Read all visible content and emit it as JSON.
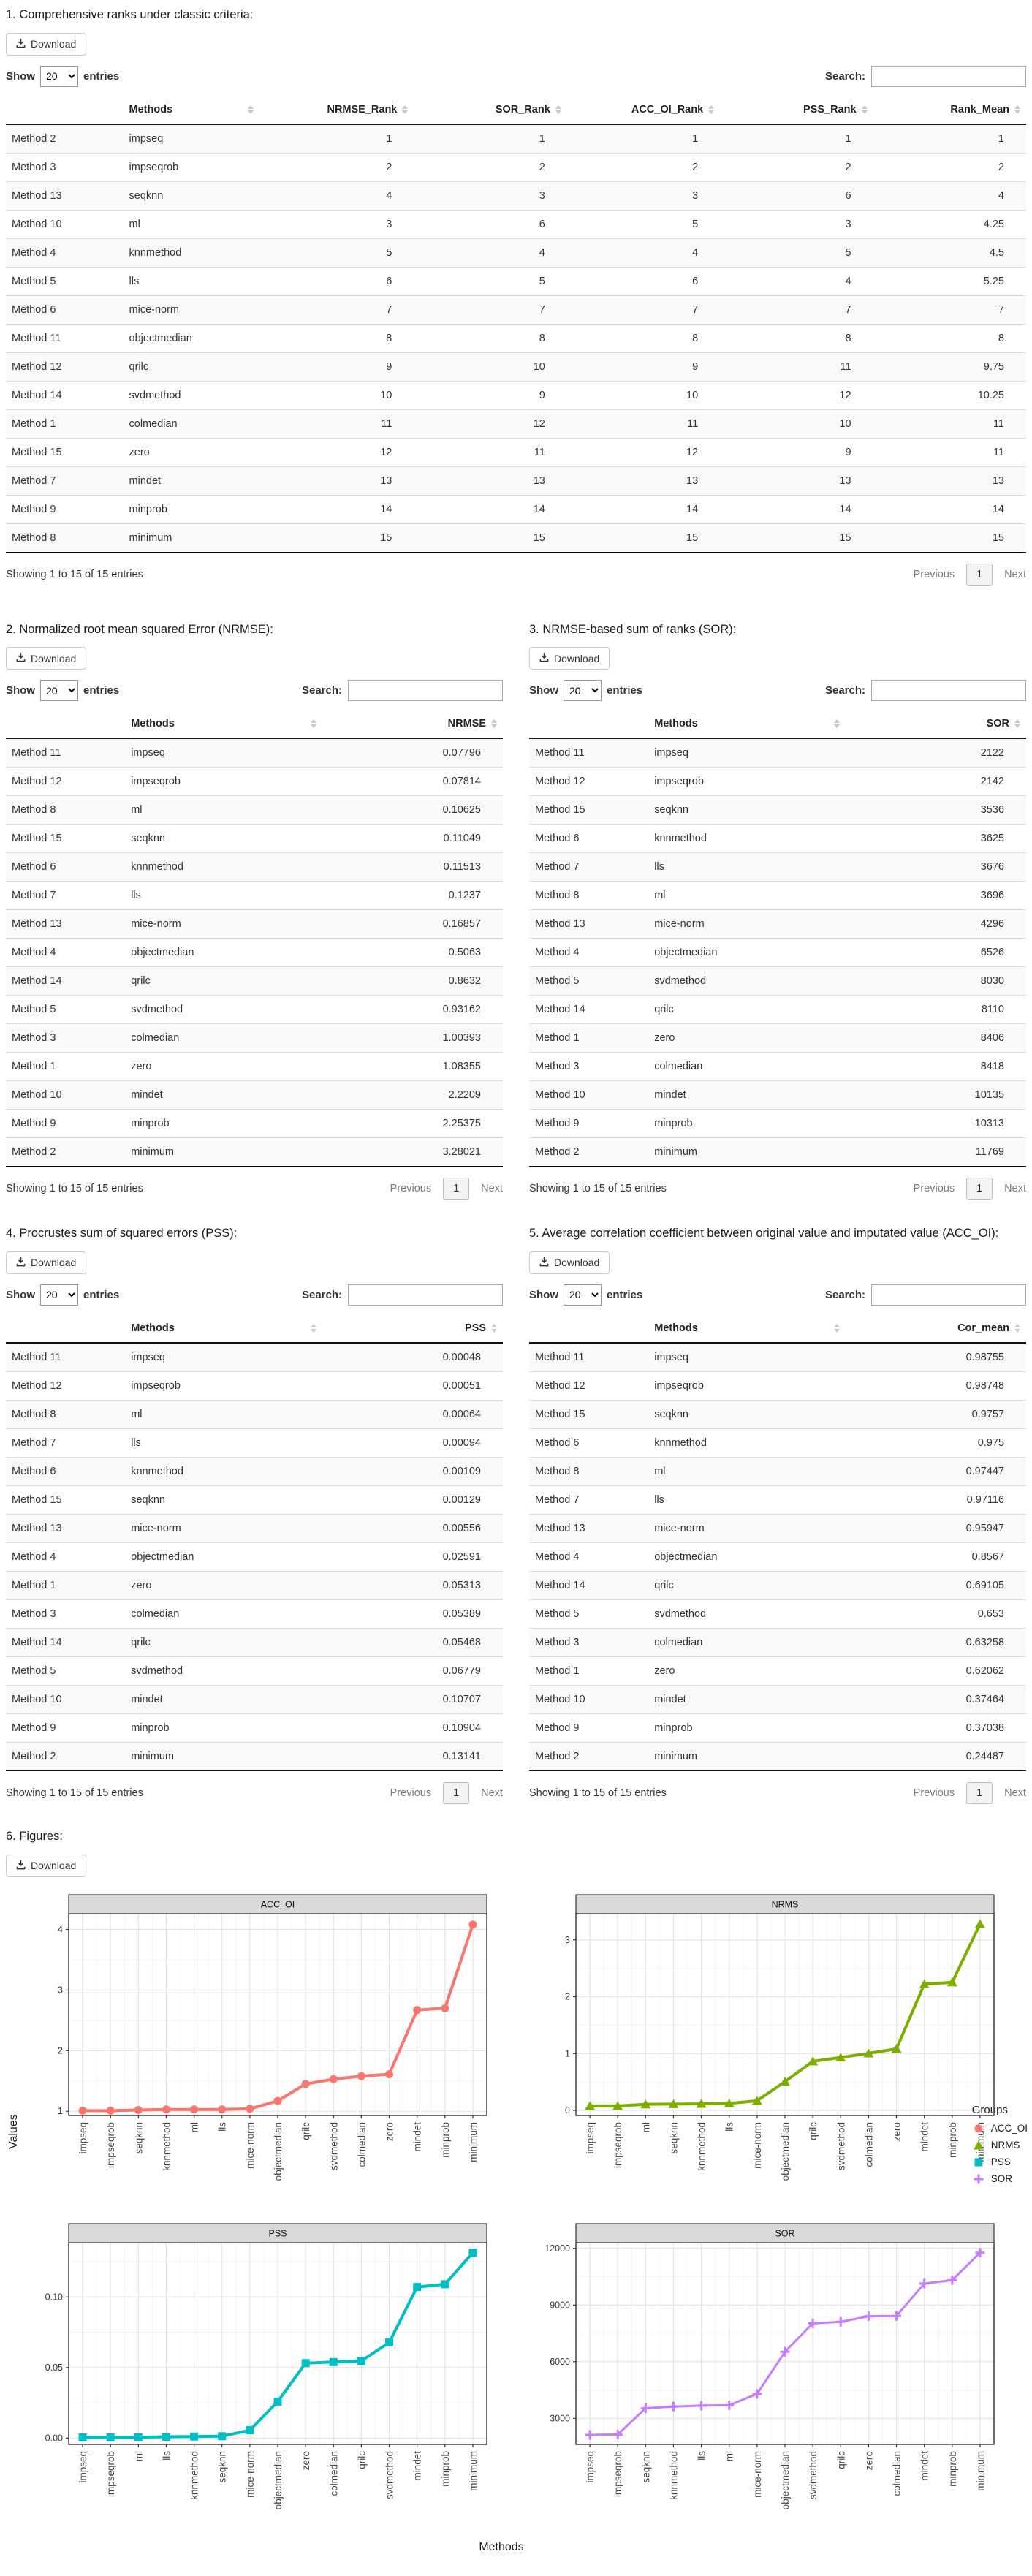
{
  "sections": {
    "s1": {
      "title": "1. Comprehensive ranks under classic criteria:"
    },
    "s2": {
      "title": "2. Normalized root mean squared Error (NRMSE):"
    },
    "s3": {
      "title": "3. NRMSE-based sum of ranks (SOR):"
    },
    "s4": {
      "title": "4. Procrustes sum of squared errors (PSS):"
    },
    "s5": {
      "title": "5. Average correlation coefficient between original value and imputated value (ACC_OI):"
    },
    "s6": {
      "title": "6. Figures:"
    }
  },
  "controls": {
    "download_label": "Download",
    "show_label": "Show",
    "page_size": "20",
    "entries_label": "entries",
    "search_label": "Search:",
    "showing_text": "Showing 1 to 15 of 15 entries",
    "previous_label": "Previous",
    "page_number": "1",
    "next_label": "Next"
  },
  "table1": {
    "columns": [
      "",
      "Methods",
      "NRMSE_Rank",
      "SOR_Rank",
      "ACC_OI_Rank",
      "PSS_Rank",
      "Rank_Mean"
    ],
    "rows": [
      [
        "Method 2",
        "impseq",
        "1",
        "1",
        "1",
        "1",
        "1"
      ],
      [
        "Method 3",
        "impseqrob",
        "2",
        "2",
        "2",
        "2",
        "2"
      ],
      [
        "Method 13",
        "seqknn",
        "4",
        "3",
        "3",
        "6",
        "4"
      ],
      [
        "Method 10",
        "ml",
        "3",
        "6",
        "5",
        "3",
        "4.25"
      ],
      [
        "Method 4",
        "knnmethod",
        "5",
        "4",
        "4",
        "5",
        "4.5"
      ],
      [
        "Method 5",
        "lls",
        "6",
        "5",
        "6",
        "4",
        "5.25"
      ],
      [
        "Method 6",
        "mice-norm",
        "7",
        "7",
        "7",
        "7",
        "7"
      ],
      [
        "Method 11",
        "objectmedian",
        "8",
        "8",
        "8",
        "8",
        "8"
      ],
      [
        "Method 12",
        "qrilc",
        "9",
        "10",
        "9",
        "11",
        "9.75"
      ],
      [
        "Method 14",
        "svdmethod",
        "10",
        "9",
        "10",
        "12",
        "10.25"
      ],
      [
        "Method 1",
        "colmedian",
        "11",
        "12",
        "11",
        "10",
        "11"
      ],
      [
        "Method 15",
        "zero",
        "12",
        "11",
        "12",
        "9",
        "11"
      ],
      [
        "Method 7",
        "mindet",
        "13",
        "13",
        "13",
        "13",
        "13"
      ],
      [
        "Method 9",
        "minprob",
        "14",
        "14",
        "14",
        "14",
        "14"
      ],
      [
        "Method 8",
        "minimum",
        "15",
        "15",
        "15",
        "15",
        "15"
      ]
    ]
  },
  "table2": {
    "columns": [
      "",
      "Methods",
      "NRMSE"
    ],
    "rows": [
      [
        "Method 11",
        "impseq",
        "0.07796"
      ],
      [
        "Method 12",
        "impseqrob",
        "0.07814"
      ],
      [
        "Method 8",
        "ml",
        "0.10625"
      ],
      [
        "Method 15",
        "seqknn",
        "0.11049"
      ],
      [
        "Method 6",
        "knnmethod",
        "0.11513"
      ],
      [
        "Method 7",
        "lls",
        "0.1237"
      ],
      [
        "Method 13",
        "mice-norm",
        "0.16857"
      ],
      [
        "Method 4",
        "objectmedian",
        "0.5063"
      ],
      [
        "Method 14",
        "qrilc",
        "0.8632"
      ],
      [
        "Method 5",
        "svdmethod",
        "0.93162"
      ],
      [
        "Method 3",
        "colmedian",
        "1.00393"
      ],
      [
        "Method 1",
        "zero",
        "1.08355"
      ],
      [
        "Method 10",
        "mindet",
        "2.2209"
      ],
      [
        "Method 9",
        "minprob",
        "2.25375"
      ],
      [
        "Method 2",
        "minimum",
        "3.28021"
      ]
    ]
  },
  "table3": {
    "columns": [
      "",
      "Methods",
      "SOR"
    ],
    "rows": [
      [
        "Method 11",
        "impseq",
        "2122"
      ],
      [
        "Method 12",
        "impseqrob",
        "2142"
      ],
      [
        "Method 15",
        "seqknn",
        "3536"
      ],
      [
        "Method 6",
        "knnmethod",
        "3625"
      ],
      [
        "Method 7",
        "lls",
        "3676"
      ],
      [
        "Method 8",
        "ml",
        "3696"
      ],
      [
        "Method 13",
        "mice-norm",
        "4296"
      ],
      [
        "Method 4",
        "objectmedian",
        "6526"
      ],
      [
        "Method 5",
        "svdmethod",
        "8030"
      ],
      [
        "Method 14",
        "qrilc",
        "8110"
      ],
      [
        "Method 1",
        "zero",
        "8406"
      ],
      [
        "Method 3",
        "colmedian",
        "8418"
      ],
      [
        "Method 10",
        "mindet",
        "10135"
      ],
      [
        "Method 9",
        "minprob",
        "10313"
      ],
      [
        "Method 2",
        "minimum",
        "11769"
      ]
    ]
  },
  "table4": {
    "columns": [
      "",
      "Methods",
      "PSS"
    ],
    "rows": [
      [
        "Method 11",
        "impseq",
        "0.00048"
      ],
      [
        "Method 12",
        "impseqrob",
        "0.00051"
      ],
      [
        "Method 8",
        "ml",
        "0.00064"
      ],
      [
        "Method 7",
        "lls",
        "0.00094"
      ],
      [
        "Method 6",
        "knnmethod",
        "0.00109"
      ],
      [
        "Method 15",
        "seqknn",
        "0.00129"
      ],
      [
        "Method 13",
        "mice-norm",
        "0.00556"
      ],
      [
        "Method 4",
        "objectmedian",
        "0.02591"
      ],
      [
        "Method 1",
        "zero",
        "0.05313"
      ],
      [
        "Method 3",
        "colmedian",
        "0.05389"
      ],
      [
        "Method 14",
        "qrilc",
        "0.05468"
      ],
      [
        "Method 5",
        "svdmethod",
        "0.06779"
      ],
      [
        "Method 10",
        "mindet",
        "0.10707"
      ],
      [
        "Method 9",
        "minprob",
        "0.10904"
      ],
      [
        "Method 2",
        "minimum",
        "0.13141"
      ]
    ]
  },
  "table5": {
    "columns": [
      "",
      "Methods",
      "Cor_mean"
    ],
    "rows": [
      [
        "Method 11",
        "impseq",
        "0.98755"
      ],
      [
        "Method 12",
        "impseqrob",
        "0.98748"
      ],
      [
        "Method 15",
        "seqknn",
        "0.9757"
      ],
      [
        "Method 6",
        "knnmethod",
        "0.975"
      ],
      [
        "Method 8",
        "ml",
        "0.97447"
      ],
      [
        "Method 7",
        "lls",
        "0.97116"
      ],
      [
        "Method 13",
        "mice-norm",
        "0.95947"
      ],
      [
        "Method 4",
        "objectmedian",
        "0.8567"
      ],
      [
        "Method 14",
        "qrilc",
        "0.69105"
      ],
      [
        "Method 5",
        "svdmethod",
        "0.653"
      ],
      [
        "Method 3",
        "colmedian",
        "0.63258"
      ],
      [
        "Method 1",
        "zero",
        "0.62062"
      ],
      [
        "Method 10",
        "mindet",
        "0.37464"
      ],
      [
        "Method 9",
        "minprob",
        "0.37038"
      ],
      [
        "Method 2",
        "minimum",
        "0.24487"
      ]
    ]
  },
  "figures": {
    "ylabel": "Values",
    "xlabel": "Methods",
    "legend": {
      "title": "Groups",
      "items": [
        {
          "label": "ACC_OI",
          "color": "#F8766D",
          "marker": "circle"
        },
        {
          "label": "NRMS",
          "color": "#7CAE00",
          "marker": "triangle"
        },
        {
          "label": "PSS",
          "color": "#00BFC4",
          "marker": "square"
        },
        {
          "label": "SOR",
          "color": "#C77CFF",
          "marker": "plus"
        }
      ]
    }
  },
  "chart_data": [
    {
      "type": "line",
      "title": "ACC_OI",
      "color": "#F8766D",
      "marker": "circle",
      "categories": [
        "impseq",
        "impseqrob",
        "seqknn",
        "knnmethod",
        "ml",
        "lls",
        "mice-norm",
        "objectmedian",
        "qrilc",
        "svdmethod",
        "colmedian",
        "zero",
        "mindet",
        "minprob",
        "minimum"
      ],
      "values": [
        1.01,
        1.01,
        1.02,
        1.03,
        1.03,
        1.03,
        1.04,
        1.17,
        1.45,
        1.53,
        1.58,
        1.61,
        2.67,
        2.7,
        4.08
      ],
      "xlabel": "Methods",
      "ylabel": "Values",
      "ylim": [
        0.93,
        4.26
      ],
      "yticks": [
        1,
        2,
        3,
        4
      ],
      "ytick_labels": [
        "1",
        "2",
        "3",
        "4"
      ],
      "grid": true,
      "legend_position": "right"
    },
    {
      "type": "line",
      "title": "NRMS",
      "color": "#7CAE00",
      "marker": "triangle",
      "categories": [
        "impseq",
        "impseqrob",
        "ml",
        "seqknn",
        "knnmethod",
        "lls",
        "mice-norm",
        "objectmedian",
        "qrilc",
        "svdmethod",
        "colmedian",
        "zero",
        "mindet",
        "minprob",
        "minimum"
      ],
      "values": [
        0.07796,
        0.07814,
        0.10625,
        0.11049,
        0.11513,
        0.1237,
        0.16857,
        0.5063,
        0.8632,
        0.93162,
        1.00393,
        1.08355,
        2.2209,
        2.25375,
        3.28021
      ],
      "xlabel": "Methods",
      "ylabel": "Values",
      "ylim": [
        -0.09,
        3.46
      ],
      "yticks": [
        0,
        1,
        2,
        3
      ],
      "ytick_labels": [
        "0",
        "1",
        "2",
        "3"
      ],
      "grid": true,
      "legend_position": "right"
    },
    {
      "type": "line",
      "title": "PSS",
      "color": "#00BFC4",
      "marker": "square",
      "categories": [
        "impseq",
        "impseqrob",
        "ml",
        "lls",
        "knnmethod",
        "seqknn",
        "mice-norm",
        "objectmedian",
        "zero",
        "colmedian",
        "qrilc",
        "svdmethod",
        "mindet",
        "minprob",
        "minimum"
      ],
      "values": [
        0.00048,
        0.00051,
        0.00064,
        0.00094,
        0.00109,
        0.00129,
        0.00556,
        0.02591,
        0.05313,
        0.05389,
        0.05468,
        0.06779,
        0.10707,
        0.10904,
        0.13141
      ],
      "xlabel": "Methods",
      "ylabel": "Values",
      "ylim": [
        -0.0045,
        0.1385
      ],
      "yticks": [
        0,
        0.05,
        0.1
      ],
      "ytick_labels": [
        "0.00",
        "0.05",
        "0.10"
      ],
      "grid": true,
      "legend_position": "right"
    },
    {
      "type": "line",
      "title": "SOR",
      "color": "#C77CFF",
      "marker": "plus",
      "categories": [
        "impseq",
        "impseqrob",
        "seqknn",
        "knnmethod",
        "lls",
        "ml",
        "mice-norm",
        "objectmedian",
        "svdmethod",
        "qrilc",
        "zero",
        "colmedian",
        "mindet",
        "minprob",
        "minimum"
      ],
      "values": [
        2122,
        2142,
        3536,
        3625,
        3676,
        3696,
        4296,
        6526,
        8030,
        8110,
        8406,
        8418,
        10135,
        10313,
        11769
      ],
      "xlabel": "Methods",
      "ylabel": "Values",
      "ylim": [
        1620,
        12300
      ],
      "yticks": [
        3000,
        6000,
        9000,
        12000
      ],
      "ytick_labels": [
        "3000",
        "6000",
        "9000",
        "12000"
      ],
      "grid": true,
      "legend_position": "right"
    }
  ]
}
